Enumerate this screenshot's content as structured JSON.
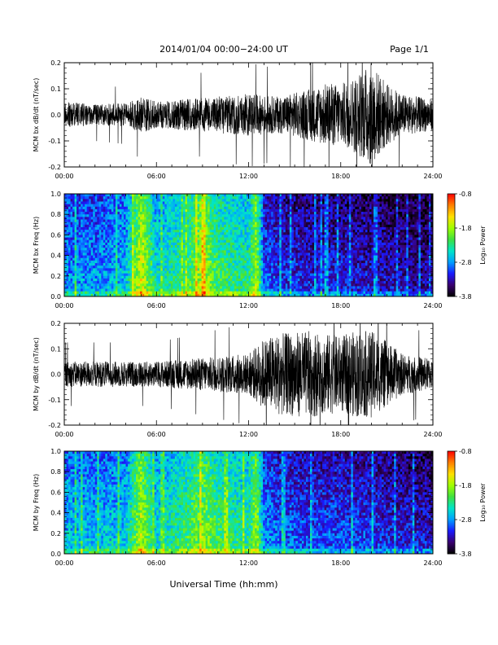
{
  "header": {
    "date_range": "2014/01/04  00:00−24:00 UT",
    "page": "Page 1/1"
  },
  "footer": {
    "xlabel": "Universal Time (hh:mm)"
  },
  "colors": {
    "trace": "#000000",
    "colormap": [
      "#000000",
      "#3a0070",
      "#1a1aff",
      "#00a0ff",
      "#00e6c8",
      "#40e040",
      "#a0ff00",
      "#ffe000",
      "#ff8000",
      "#ff0000"
    ]
  },
  "chart_data": [
    {
      "type": "line",
      "ylabel": "MCM bx dB/dt (nT/sec)",
      "xlim_hours": [
        0,
        24
      ],
      "ylim": [
        -0.2,
        0.2
      ],
      "x_ticks": [
        "00:00",
        "06:00",
        "12:00",
        "18:00",
        "24:00"
      ],
      "y_ticks": [
        "-0.2",
        "-0.1",
        "0.0",
        "0.1",
        "0.2"
      ],
      "amplitude_envelope": {
        "hours": [
          0,
          2,
          4,
          5,
          6,
          8,
          10,
          12,
          14,
          16,
          17,
          18,
          19,
          20,
          21,
          22,
          24
        ],
        "amplitude": [
          0.05,
          0.04,
          0.045,
          0.07,
          0.05,
          0.06,
          0.07,
          0.08,
          0.07,
          0.1,
          0.12,
          0.12,
          0.15,
          0.2,
          0.12,
          0.08,
          0.06
        ]
      }
    },
    {
      "type": "heatmap",
      "ylabel": "MCM bx Freq (Hz)",
      "xlim_hours": [
        0,
        24
      ],
      "ylim": [
        0,
        1.0
      ],
      "x_ticks": [
        "00:00",
        "06:00",
        "12:00",
        "18:00",
        "24:00"
      ],
      "y_ticks": [
        "0.0",
        "0.2",
        "0.4",
        "0.6",
        "0.8",
        "1.0"
      ],
      "colorbar": {
        "label": "Log₁₀ Power",
        "ticks": [
          "-3.8",
          "-2.8",
          "-1.8",
          "-0.8"
        ],
        "range": [
          -3.8,
          -0.8
        ]
      },
      "activity_profile": {
        "hours": [
          0,
          2,
          4,
          5,
          6,
          8,
          9,
          10,
          12,
          12.5,
          13,
          14,
          16,
          18,
          20,
          22,
          24
        ],
        "level": [
          0.35,
          0.35,
          0.4,
          0.75,
          0.45,
          0.55,
          0.7,
          0.55,
          0.5,
          0.7,
          0.3,
          0.25,
          0.22,
          0.22,
          0.2,
          0.18,
          0.15
        ]
      }
    },
    {
      "type": "line",
      "ylabel": "MCM by dB/dt (nT/sec)",
      "xlim_hours": [
        0,
        24
      ],
      "ylim": [
        -0.2,
        0.2
      ],
      "x_ticks": [
        "00:00",
        "06:00",
        "12:00",
        "18:00",
        "24:00"
      ],
      "y_ticks": [
        "-0.2",
        "-0.1",
        "0.0",
        "0.1",
        "0.2"
      ],
      "amplitude_envelope": {
        "hours": [
          0,
          2,
          4,
          6,
          8,
          10,
          12,
          13,
          14,
          16,
          18,
          19,
          20,
          21,
          22,
          24
        ],
        "amplitude": [
          0.05,
          0.05,
          0.05,
          0.05,
          0.06,
          0.07,
          0.08,
          0.14,
          0.16,
          0.17,
          0.15,
          0.17,
          0.17,
          0.13,
          0.08,
          0.06
        ]
      }
    },
    {
      "type": "heatmap",
      "ylabel": "MCM by Freq (Hz)",
      "xlim_hours": [
        0,
        24
      ],
      "ylim": [
        0,
        1.0
      ],
      "x_ticks": [
        "00:00",
        "06:00",
        "12:00",
        "18:00",
        "24:00"
      ],
      "y_ticks": [
        "0.0",
        "0.2",
        "0.4",
        "0.6",
        "0.8",
        "1.0"
      ],
      "colorbar": {
        "label": "Log₁₀ Power",
        "ticks": [
          "-3.8",
          "-2.8",
          "-1.8",
          "-0.8"
        ],
        "range": [
          -3.8,
          -0.8
        ]
      },
      "activity_profile": {
        "hours": [
          0,
          2,
          4,
          5,
          6,
          8,
          9,
          10,
          12,
          12.5,
          13,
          14,
          16,
          18,
          20,
          22,
          24
        ],
        "level": [
          0.4,
          0.4,
          0.42,
          0.7,
          0.45,
          0.55,
          0.65,
          0.55,
          0.5,
          0.68,
          0.35,
          0.3,
          0.27,
          0.27,
          0.25,
          0.22,
          0.2
        ]
      }
    }
  ]
}
